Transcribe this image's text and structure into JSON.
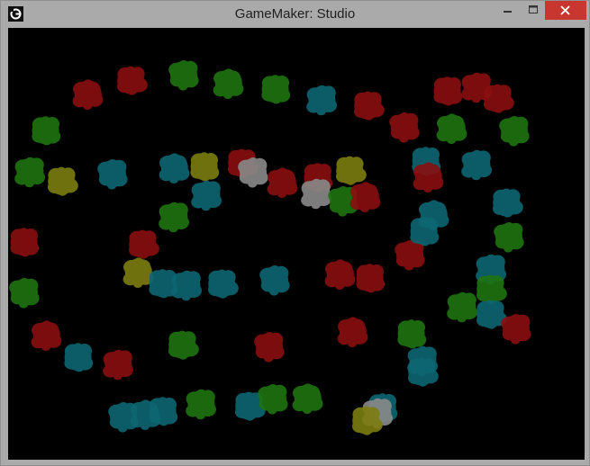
{
  "window": {
    "title": "GameMaker: Studio",
    "controls": {
      "minimize_icon": "minimize-icon",
      "maximize_icon": "maximize-icon",
      "close_icon": "close-icon"
    }
  },
  "colors": {
    "red": "#8a0f10",
    "green": "#1f7410",
    "teal": "#0d6672",
    "yellow": "#7c7d10",
    "grey": "#8a8a8a",
    "close_button": "#c7372f"
  },
  "sprites": [
    [
      "red",
      145,
      88
    ],
    [
      "green",
      203,
      82
    ],
    [
      "green",
      252,
      92
    ],
    [
      "green",
      305,
      98
    ],
    [
      "teal",
      356,
      110
    ],
    [
      "red",
      408,
      116
    ],
    [
      "red",
      448,
      140
    ],
    [
      "green",
      500,
      142
    ],
    [
      "red",
      496,
      100
    ],
    [
      "red",
      528,
      96
    ],
    [
      "red",
      552,
      108
    ],
    [
      "green",
      570,
      144
    ],
    [
      "red",
      96,
      104
    ],
    [
      "green",
      50,
      144
    ],
    [
      "green",
      32,
      190
    ],
    [
      "yellow",
      68,
      200
    ],
    [
      "teal",
      124,
      192
    ],
    [
      "teal",
      192,
      186
    ],
    [
      "yellow",
      226,
      184
    ],
    [
      "teal",
      228,
      216
    ],
    [
      "red",
      268,
      180
    ],
    [
      "grey",
      280,
      190
    ],
    [
      "red",
      312,
      202
    ],
    [
      "red",
      352,
      196
    ],
    [
      "grey",
      350,
      214
    ],
    [
      "yellow",
      388,
      188
    ],
    [
      "green",
      380,
      222
    ],
    [
      "red",
      404,
      218
    ],
    [
      "teal",
      472,
      178
    ],
    [
      "teal",
      528,
      182
    ],
    [
      "teal",
      562,
      224
    ],
    [
      "green",
      564,
      262
    ],
    [
      "red",
      474,
      196
    ],
    [
      "red",
      26,
      268
    ],
    [
      "green",
      192,
      240
    ],
    [
      "red",
      158,
      270
    ],
    [
      "red",
      454,
      282
    ],
    [
      "teal",
      480,
      238
    ],
    [
      "teal",
      470,
      256
    ],
    [
      "teal",
      544,
      298
    ],
    [
      "green",
      544,
      320
    ],
    [
      "green",
      26,
      324
    ],
    [
      "yellow",
      152,
      302
    ],
    [
      "teal",
      180,
      314
    ],
    [
      "teal",
      206,
      316
    ],
    [
      "teal",
      246,
      314
    ],
    [
      "teal",
      304,
      310
    ],
    [
      "red",
      376,
      304
    ],
    [
      "red",
      410,
      308
    ],
    [
      "green",
      512,
      340
    ],
    [
      "teal",
      544,
      348
    ],
    [
      "red",
      572,
      364
    ],
    [
      "red",
      50,
      372
    ],
    [
      "teal",
      86,
      396
    ],
    [
      "red",
      130,
      404
    ],
    [
      "green",
      202,
      382
    ],
    [
      "red",
      298,
      384
    ],
    [
      "red",
      390,
      368
    ],
    [
      "green",
      456,
      370
    ],
    [
      "teal",
      468,
      400
    ],
    [
      "teal",
      468,
      412
    ],
    [
      "teal",
      136,
      462
    ],
    [
      "teal",
      160,
      460
    ],
    [
      "teal",
      180,
      456
    ],
    [
      "green",
      222,
      448
    ],
    [
      "teal",
      276,
      450
    ],
    [
      "green",
      302,
      442
    ],
    [
      "green",
      340,
      442
    ],
    [
      "teal",
      424,
      452
    ],
    [
      "grey",
      418,
      458
    ],
    [
      "yellow",
      406,
      466
    ]
  ]
}
